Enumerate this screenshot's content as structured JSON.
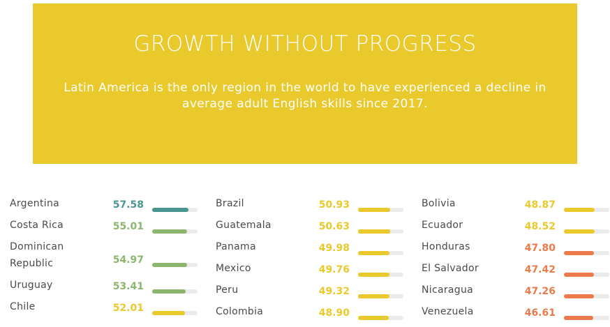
{
  "banner": {
    "title": "GROWTH WITHOUT PROGRESS",
    "subtitle": "Latin America is the only region in the world to have experienced a decline in average adult English skills since 2017."
  },
  "colors": {
    "banner": "#e9c92c",
    "teal": "#4a9590",
    "green": "#8cb56e",
    "yellow": "#e9c92c",
    "orange": "#ec7a4a"
  },
  "chart_data": {
    "type": "bar",
    "title": "GROWTH WITHOUT PROGRESS",
    "subtitle": "Latin America is the only region in the world to have experienced a decline in average adult English skills since 2017.",
    "columns": [
      [
        {
          "country": "Argentina",
          "score": "57.58",
          "value": 57.58,
          "color": "#4a9590"
        },
        {
          "country": "Costa Rica",
          "score": "55.01",
          "value": 55.01,
          "color": "#8cb56e"
        },
        {
          "country": "Dominican Republic",
          "score": "54.97",
          "value": 54.97,
          "color": "#8cb56e"
        },
        {
          "country": "Uruguay",
          "score": "53.41",
          "value": 53.41,
          "color": "#8cb56e"
        },
        {
          "country": "Chile",
          "score": "52.01",
          "value": 52.01,
          "color": "#e9c92c"
        }
      ],
      [
        {
          "country": "Brazil",
          "score": "50.93",
          "value": 50.93,
          "color": "#e9c92c"
        },
        {
          "country": "Guatemala",
          "score": "50.63",
          "value": 50.63,
          "color": "#e9c92c"
        },
        {
          "country": "Panama",
          "score": "49.98",
          "value": 49.98,
          "color": "#e9c92c"
        },
        {
          "country": "Mexico",
          "score": "49.76",
          "value": 49.76,
          "color": "#e9c92c"
        },
        {
          "country": "Peru",
          "score": "49.32",
          "value": 49.32,
          "color": "#e9c92c"
        },
        {
          "country": "Colombia",
          "score": "48.90",
          "value": 48.9,
          "color": "#e9c92c"
        }
      ],
      [
        {
          "country": "Bolivia",
          "score": "48.87",
          "value": 48.87,
          "color": "#e9c92c"
        },
        {
          "country": "Ecuador",
          "score": "48.52",
          "value": 48.52,
          "color": "#e9c92c"
        },
        {
          "country": "Honduras",
          "score": "47.80",
          "value": 47.8,
          "color": "#ec7a4a"
        },
        {
          "country": "El Salvador",
          "score": "47.42",
          "value": 47.42,
          "color": "#ec7a4a"
        },
        {
          "country": "Nicaragua",
          "score": "47.26",
          "value": 47.26,
          "color": "#ec7a4a"
        },
        {
          "country": "Venezuela",
          "score": "46.61",
          "value": 46.61,
          "color": "#ec7a4a"
        }
      ]
    ],
    "value_range": [
      0,
      72
    ]
  }
}
